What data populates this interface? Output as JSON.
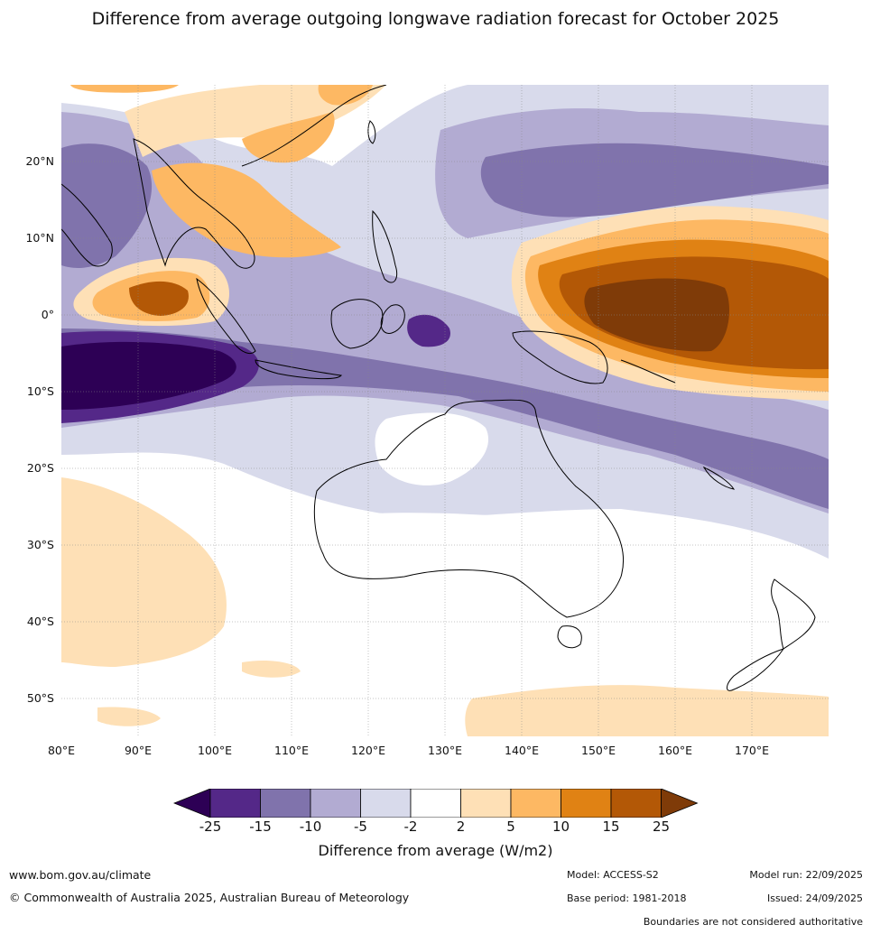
{
  "title": "Difference from average outgoing longwave radiation forecast for October 2025",
  "map": {
    "region": "Indo-Pacific and Australia",
    "lat_labels": [
      "20°N",
      "10°N",
      "0°",
      "10°S",
      "20°S",
      "30°S",
      "40°S",
      "50°S"
    ],
    "lon_labels": [
      "80°E",
      "90°E",
      "100°E",
      "110°E",
      "120°E",
      "130°E",
      "140°E",
      "150°E",
      "160°E",
      "170°E"
    ],
    "lat_range": [
      -55,
      30
    ],
    "lon_range": [
      80,
      180
    ]
  },
  "colorbar": {
    "label": "Difference from average (W/m2)",
    "ticks": [
      "-25",
      "-15",
      "-10",
      "-5",
      "-2",
      "2",
      "5",
      "10",
      "15",
      "25"
    ],
    "colors": [
      "#2d0055",
      "#542888",
      "#8073ac",
      "#b2abd2",
      "#d8daeb",
      "#ffffff",
      "#fee0b6",
      "#fdb863",
      "#e08214",
      "#b35806",
      "#7f3b08"
    ]
  },
  "footer": {
    "website": "www.bom.gov.au/climate",
    "copyright": "© Commonwealth of Australia 2025, Australian Bureau of Meteorology",
    "model": "Model: ACCESS-S2",
    "base_period": "Base period: 1981-2018",
    "model_run": "Model run: 22/09/2025",
    "issued": "Issued: 24/09/2025",
    "disclaimer": "Boundaries are not considered authoritative"
  }
}
